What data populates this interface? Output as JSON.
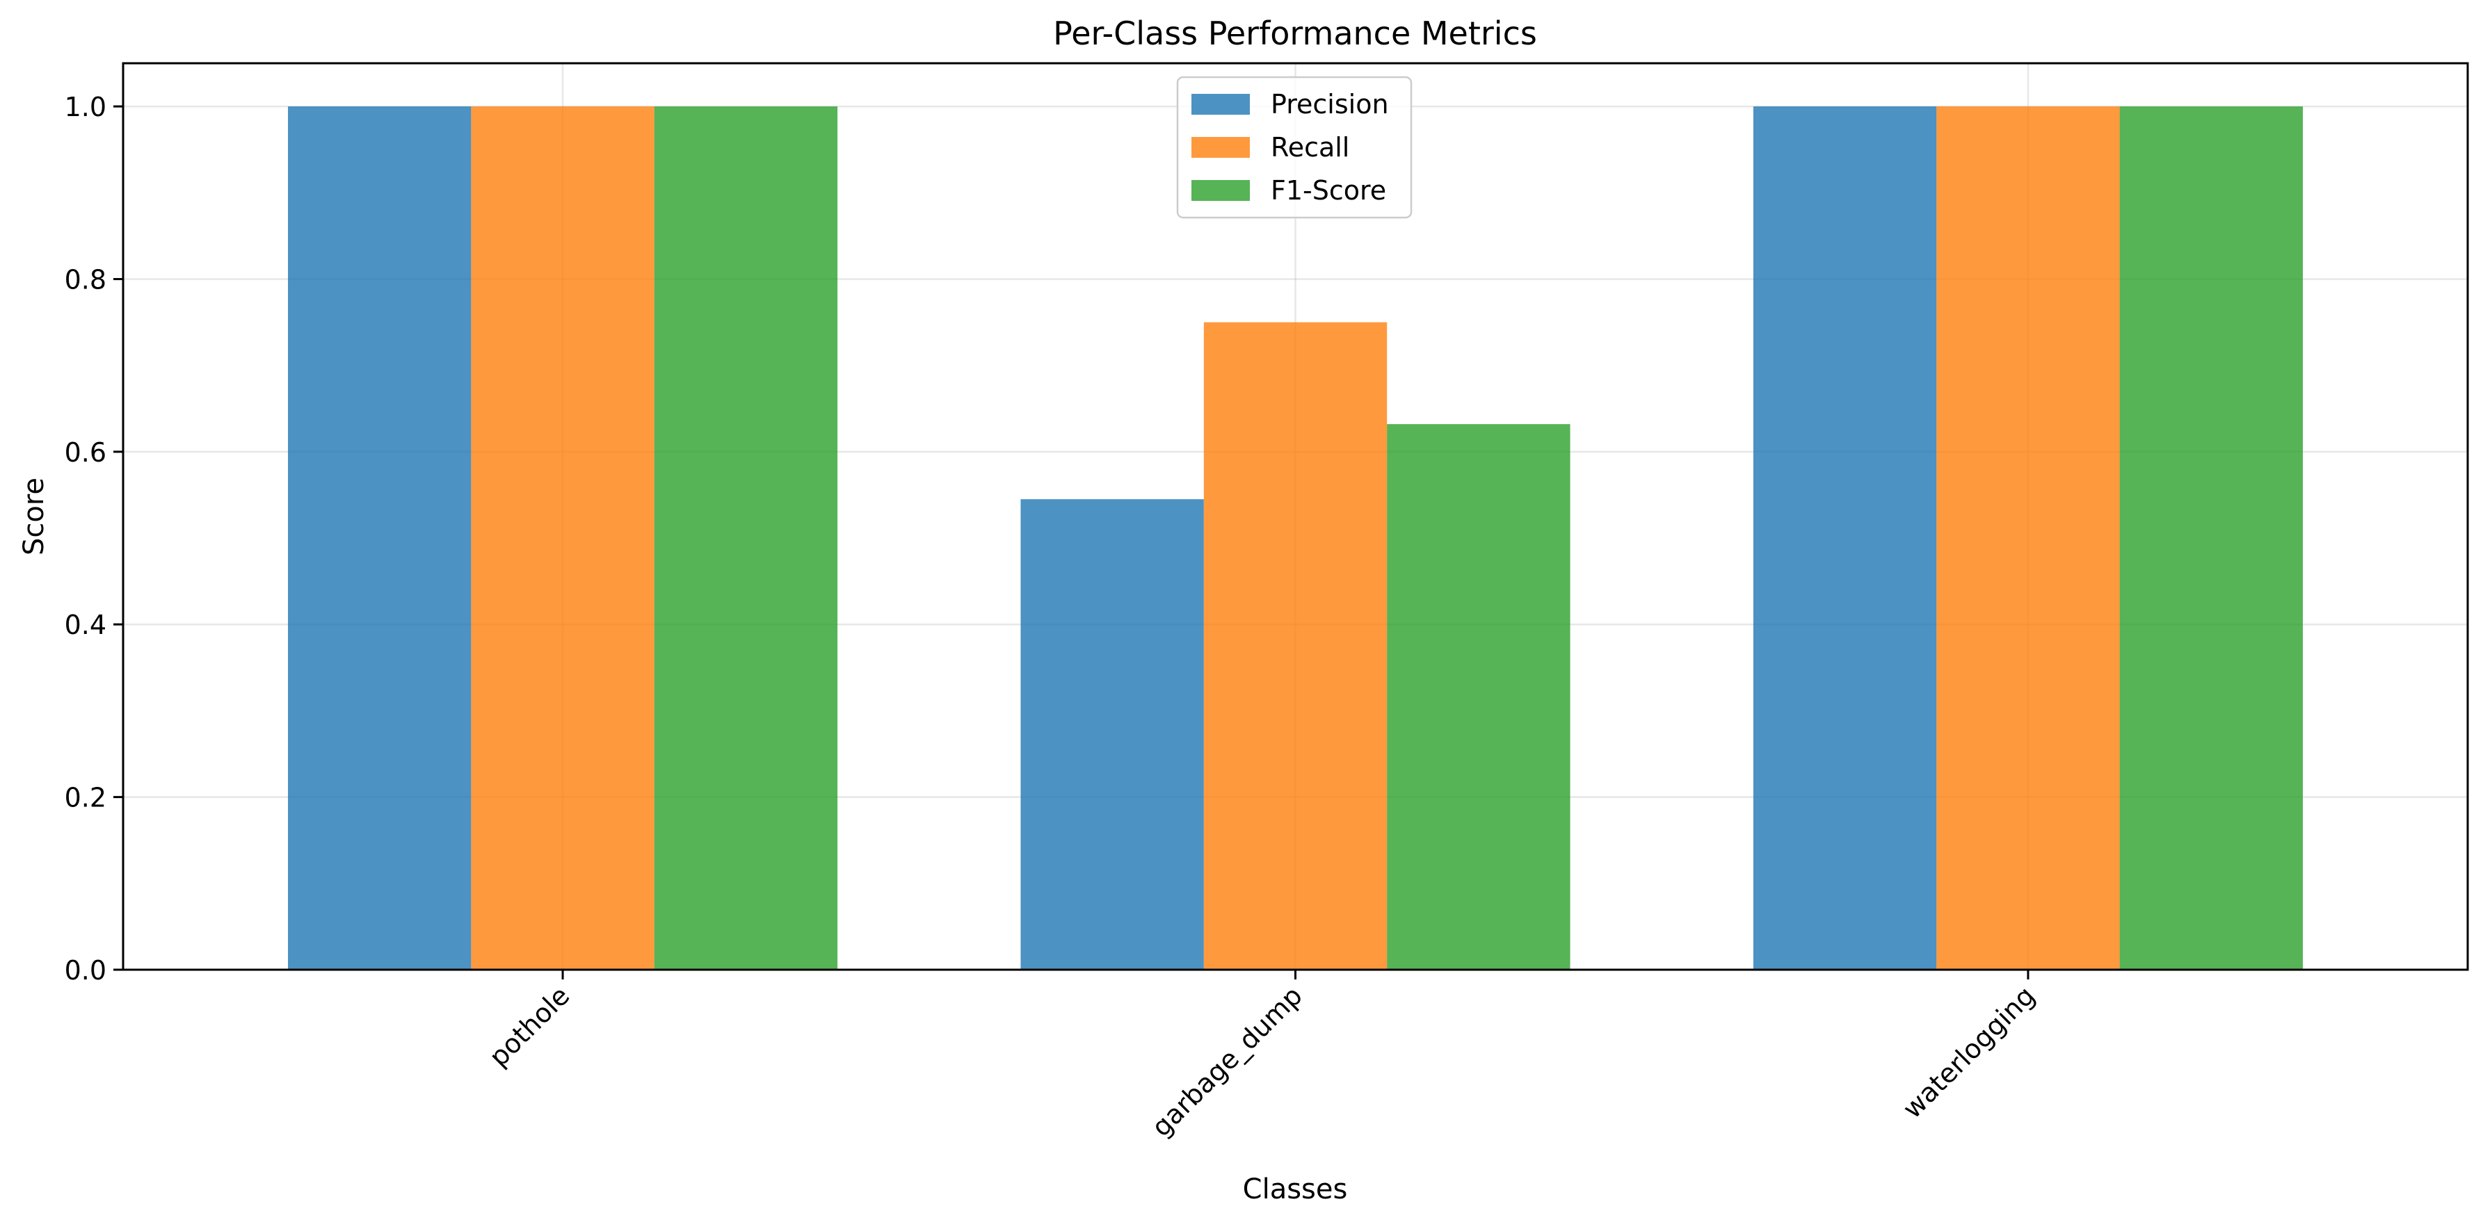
{
  "chart_data": {
    "type": "bar",
    "title": "Per-Class Performance Metrics",
    "xlabel": "Classes",
    "ylabel": "Score",
    "categories": [
      "pothole",
      "garbage_dump",
      "waterlogging"
    ],
    "series": [
      {
        "name": "Precision",
        "values": [
          1.0,
          0.545,
          1.0
        ],
        "color": "#1f77b4"
      },
      {
        "name": "Recall",
        "values": [
          1.0,
          0.75,
          1.0
        ],
        "color": "#ff7f0e"
      },
      {
        "name": "F1-Score",
        "values": [
          1.0,
          0.632,
          1.0
        ],
        "color": "#2ca02c"
      }
    ],
    "ylim": [
      0,
      1.05
    ],
    "yticks": [
      0.0,
      0.2,
      0.4,
      0.6,
      0.8,
      1.0
    ],
    "ytick_labels": [
      "0.0",
      "0.2",
      "0.4",
      "0.6",
      "0.8",
      "1.0"
    ],
    "grid": true,
    "legend_position": "upper-center",
    "bar_opacity": 0.8
  }
}
